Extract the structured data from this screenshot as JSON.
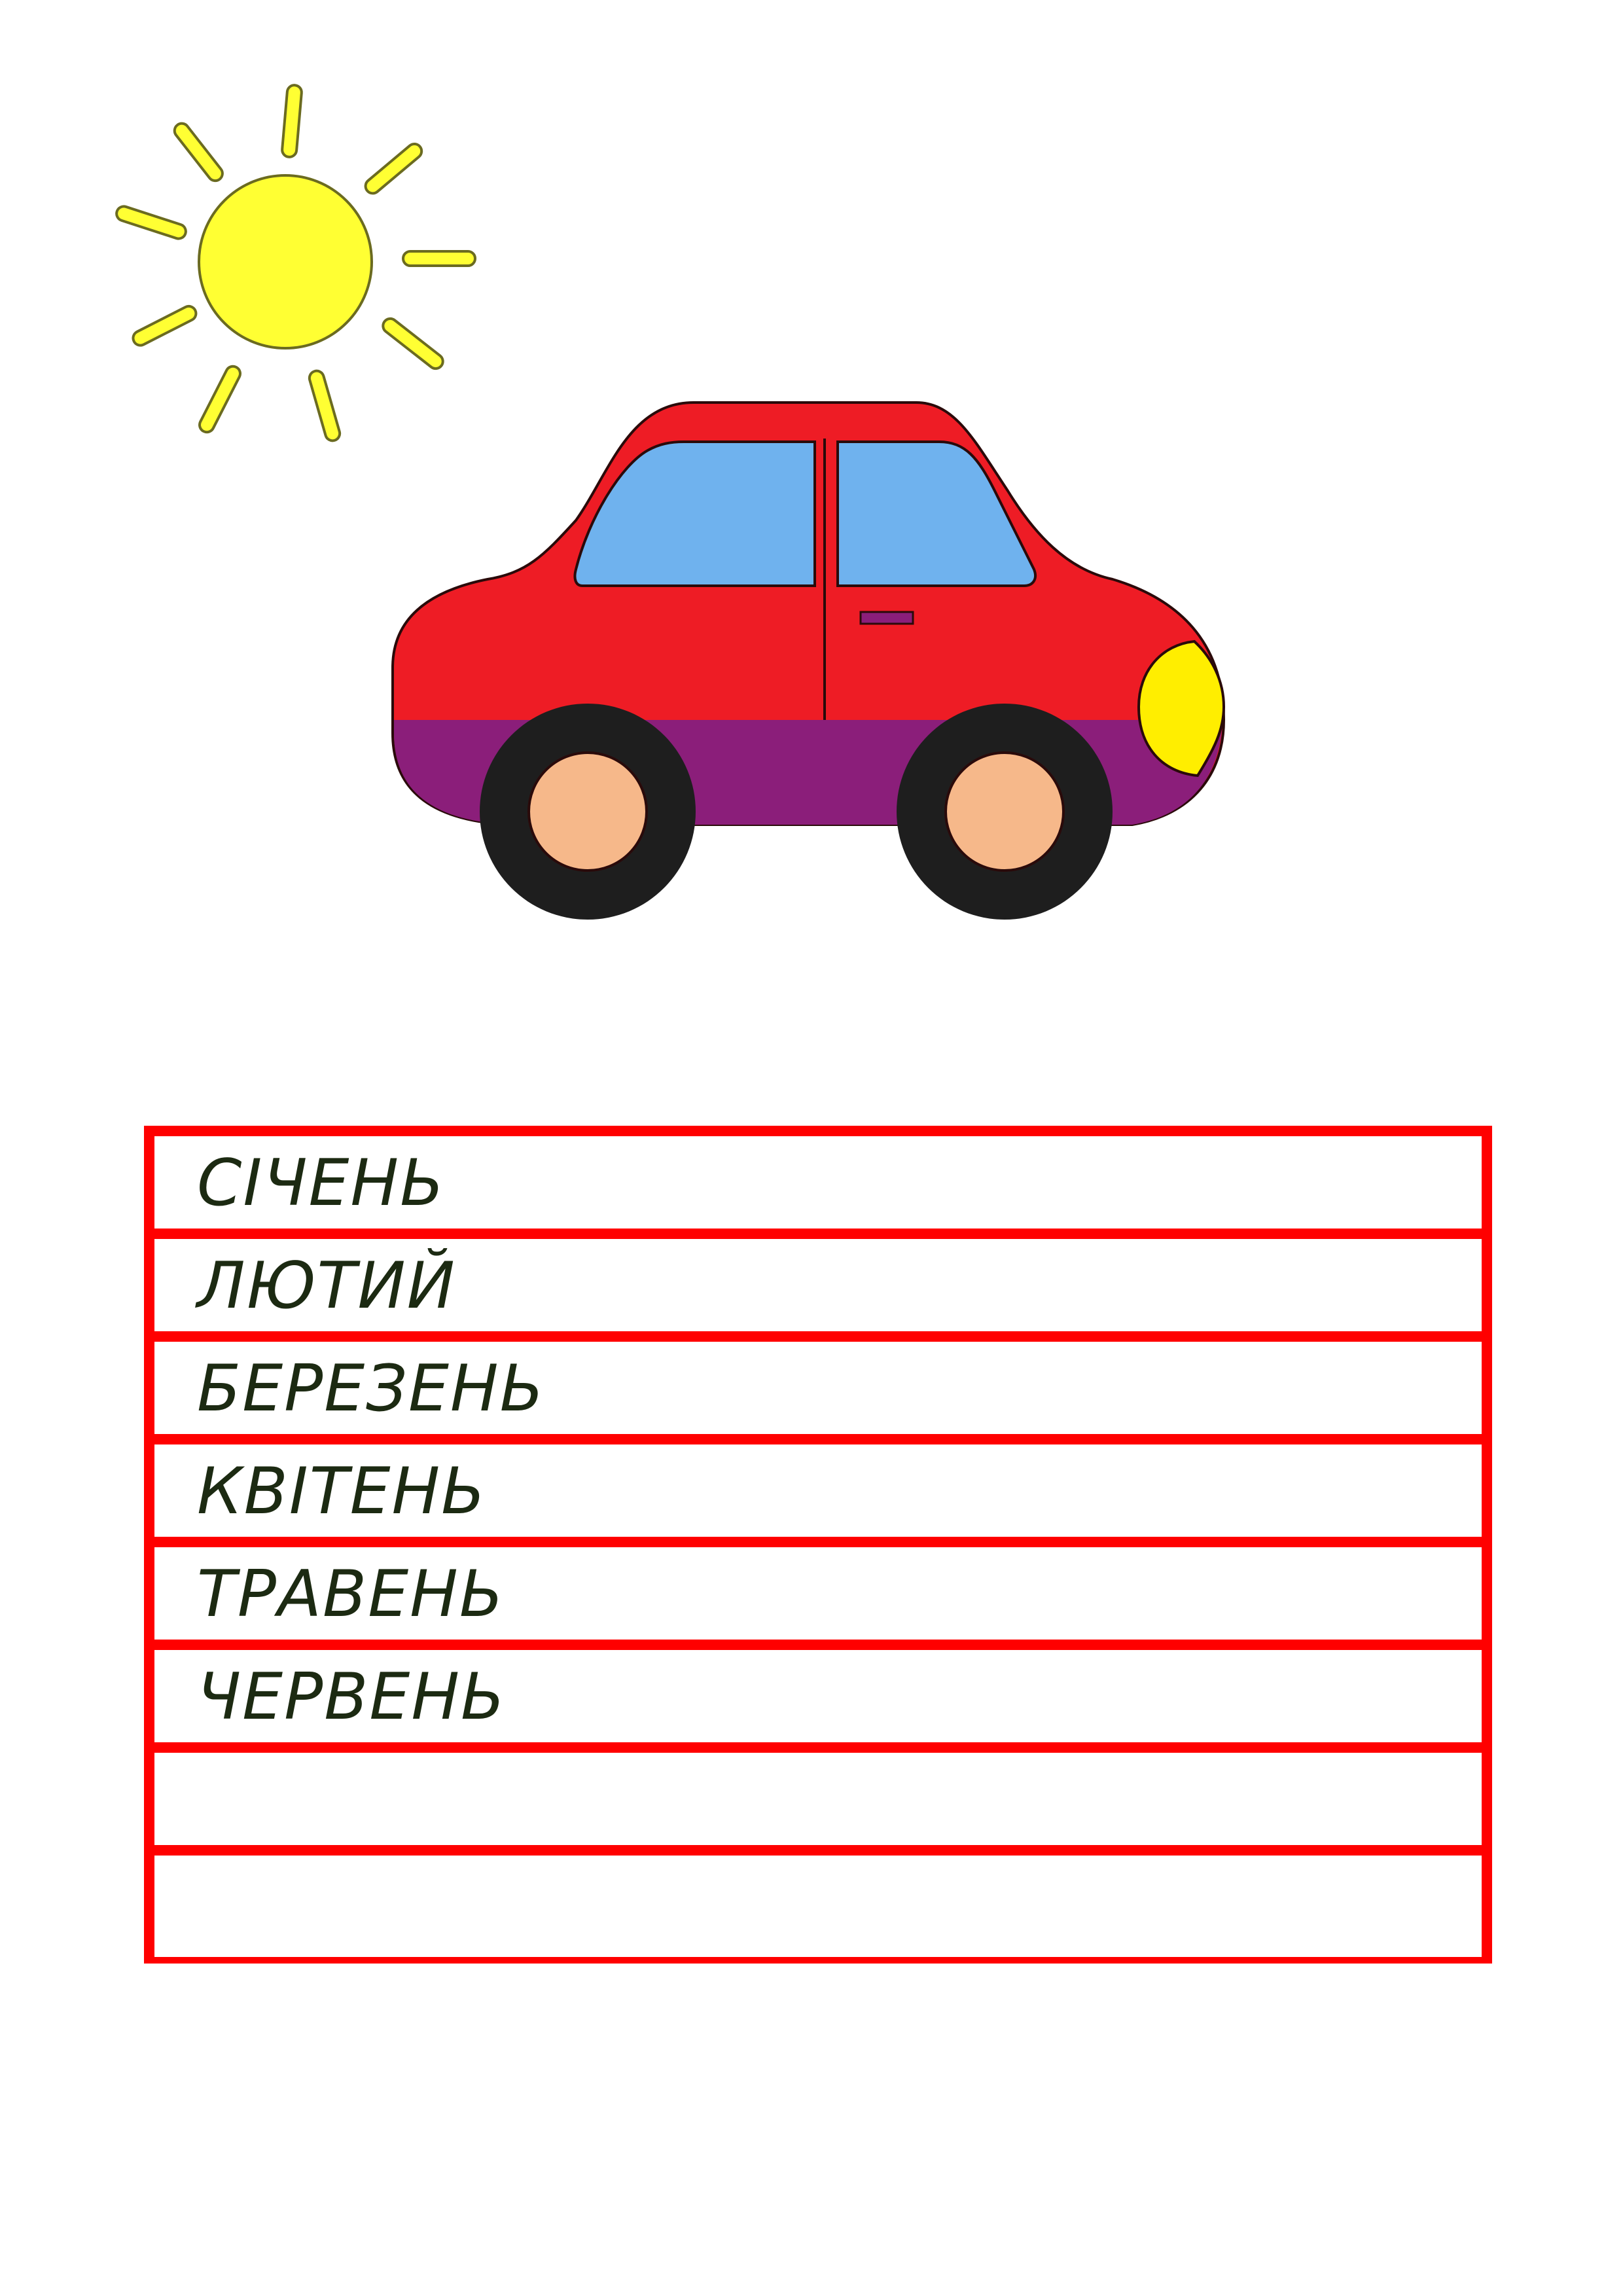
{
  "colors": {
    "sun_fill": "#ffff33",
    "sun_outline": "#6b6b20",
    "car_body": "#ee1c25",
    "car_lower": "#8b1e7a",
    "car_window": "#6fb2ee",
    "car_headlight": "#ffee00",
    "wheel_tire": "#1e1e1e",
    "wheel_hub": "#f6b88a",
    "table_border": "#ff0000",
    "text": "#1c2a12"
  },
  "months": [
    {
      "label": "СІЧЕНЬ"
    },
    {
      "label": "ЛЮТИЙ"
    },
    {
      "label": "БЕРЕЗЕНЬ"
    },
    {
      "label": "КВІТЕНЬ"
    },
    {
      "label": "ТРАВЕНЬ"
    },
    {
      "label": "ЧЕРВЕНЬ"
    },
    {
      "label": ""
    },
    {
      "label": ""
    }
  ]
}
